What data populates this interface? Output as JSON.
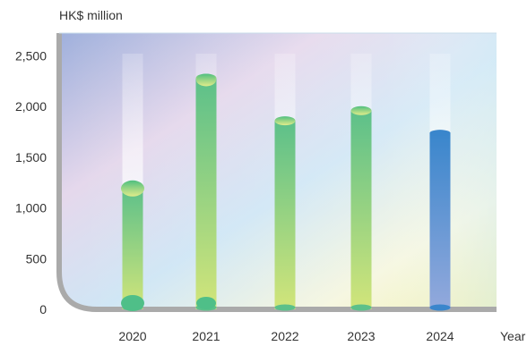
{
  "chart_data": {
    "type": "bar",
    "unit_label": "HK$ million",
    "xlabel": "Year",
    "ylabel": "",
    "categories": [
      "2020",
      "2021",
      "2022",
      "2023",
      "2024"
    ],
    "values": [
      1210,
      2280,
      1860,
      1960,
      1740
    ],
    "ylim": [
      0,
      2800
    ],
    "yticks": [
      0,
      500,
      1000,
      1500,
      2000,
      2500
    ],
    "ytick_labels": [
      "0",
      "500",
      "1,000",
      "1,500",
      "2,000",
      "2,500"
    ],
    "grid": false,
    "colors": {
      "green_top": "#5cc08a",
      "green_bottom": "#d2e57a",
      "highlight_top": "#3a86cc",
      "highlight_bottom": "#93a9dc",
      "axis": "#aaaaaa"
    },
    "highlight_category": "2024"
  }
}
